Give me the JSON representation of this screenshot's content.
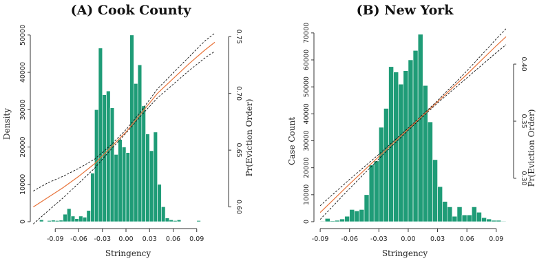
{
  "panels": [
    {
      "title": "(A) Cook County",
      "xlabel": "Stringency",
      "ylabel_left": "Density",
      "ylabel_right": "Pr(Eviction Order)",
      "x_ticks": [
        "-0.09",
        "-0.06",
        "-0.03",
        "0.00",
        "0.03",
        "0.06",
        "0.09"
      ],
      "y_left_ticks": [
        "0",
        "10000",
        "20000",
        "30000",
        "40000",
        "50000"
      ],
      "y_right_ticks": [
        "0.60",
        "0.65",
        "0.70",
        "0.75"
      ]
    },
    {
      "title": "(B) New York",
      "xlabel": "Stringency",
      "ylabel_left": "Case Count",
      "ylabel_right": "Pr(Eviction Order)",
      "x_ticks": [
        "-0.09",
        "-0.06",
        "-0.03",
        "0.00",
        "0.03",
        "0.06",
        "0.09"
      ],
      "y_left_ticks": [
        "0",
        "10000",
        "20000",
        "30000",
        "40000",
        "50000",
        "60000",
        "70000"
      ],
      "y_right_ticks": [
        "0.30",
        "0.35",
        "0.40"
      ]
    }
  ],
  "colors": {
    "bar": "#1f9c77",
    "bar_edge": "#ffffff",
    "fit": "#e8733a",
    "ci": "#111111"
  },
  "chart_data": [
    {
      "type": "bar",
      "title": "(A) Cook County",
      "xlabel": "Stringency",
      "ylabel": "Density",
      "y2label": "Pr(Eviction Order)",
      "xlim": [
        -0.12,
        0.12
      ],
      "ylim": [
        0,
        52000
      ],
      "y2lim": [
        0.587,
        0.758
      ],
      "bin_width": 0.005,
      "bins_start": [
        -0.115,
        -0.11,
        -0.105,
        -0.1,
        -0.095,
        -0.09,
        -0.085,
        -0.08,
        -0.075,
        -0.07,
        -0.065,
        -0.06,
        -0.055,
        -0.05,
        -0.045,
        -0.04,
        -0.035,
        -0.03,
        -0.025,
        -0.02,
        -0.015,
        -0.01,
        -0.005,
        0.0,
        0.005,
        0.01,
        0.015,
        0.02,
        0.025,
        0.03,
        0.035,
        0.04,
        0.045,
        0.05,
        0.055,
        0.06,
        0.065,
        0.07,
        0.075,
        0.08,
        0.085,
        0.09,
        0.095,
        0.1,
        0.105,
        0.11
      ],
      "values": [
        0,
        500,
        0,
        300,
        400,
        300,
        400,
        2000,
        3500,
        1500,
        800,
        1500,
        1200,
        3000,
        13000,
        30000,
        46500,
        34000,
        35000,
        30500,
        18000,
        22000,
        20000,
        18500,
        50000,
        37000,
        42000,
        31000,
        23500,
        19000,
        24000,
        10000,
        4000,
        1000,
        500,
        300,
        500,
        0,
        0,
        0,
        0,
        300,
        0,
        0,
        0,
        0
      ],
      "fit": {
        "x": [
          -0.118,
          -0.1,
          -0.08,
          -0.06,
          -0.04,
          -0.02,
          0.0,
          0.02,
          0.04,
          0.06,
          0.08,
          0.1,
          0.113
        ],
        "y": [
          0.6,
          0.608,
          0.617,
          0.627,
          0.638,
          0.652,
          0.666,
          0.683,
          0.7,
          0.713,
          0.726,
          0.738,
          0.745
        ],
        "lower": [
          0.585,
          0.596,
          0.608,
          0.621,
          0.634,
          0.65,
          0.665,
          0.681,
          0.696,
          0.708,
          0.72,
          0.731,
          0.737
        ],
        "upper": [
          0.614,
          0.621,
          0.627,
          0.634,
          0.642,
          0.654,
          0.668,
          0.685,
          0.704,
          0.718,
          0.732,
          0.746,
          0.753
        ]
      }
    },
    {
      "type": "bar",
      "title": "(B) New York",
      "xlabel": "Stringency",
      "ylabel": "Case Count",
      "y2label": "Pr(Eviction Order)",
      "xlim": [
        -0.095,
        0.1
      ],
      "ylim": [
        0,
        72000
      ],
      "y2lim": [
        0.262,
        0.432
      ],
      "bin_width": 0.005,
      "bins_start": [
        -0.09,
        -0.085,
        -0.08,
        -0.075,
        -0.07,
        -0.065,
        -0.06,
        -0.055,
        -0.05,
        -0.045,
        -0.04,
        -0.035,
        -0.03,
        -0.025,
        -0.02,
        -0.015,
        -0.01,
        -0.005,
        0.0,
        0.005,
        0.01,
        0.015,
        0.02,
        0.025,
        0.03,
        0.035,
        0.04,
        0.045,
        0.05,
        0.055,
        0.06,
        0.065,
        0.07,
        0.075,
        0.08,
        0.085,
        0.09,
        0.095
      ],
      "values": [
        200,
        1200,
        300,
        500,
        1000,
        2000,
        4500,
        4000,
        4500,
        10000,
        21000,
        22500,
        35000,
        42000,
        57500,
        55500,
        51000,
        56000,
        60000,
        63500,
        69500,
        50500,
        37000,
        23000,
        13000,
        7500,
        5500,
        2000,
        5500,
        2500,
        2500,
        5500,
        3500,
        1500,
        1000,
        500,
        500,
        200
      ],
      "fit": {
        "x": [
          -0.09,
          -0.06,
          -0.03,
          0.0,
          0.03,
          0.06,
          0.09,
          0.1
        ],
        "y": [
          0.27,
          0.295,
          0.319,
          0.343,
          0.367,
          0.391,
          0.416,
          0.424
        ],
        "lower": [
          0.264,
          0.291,
          0.317,
          0.342,
          0.366,
          0.388,
          0.41,
          0.417
        ],
        "upper": [
          0.276,
          0.299,
          0.321,
          0.344,
          0.368,
          0.394,
          0.422,
          0.431
        ]
      }
    }
  ]
}
